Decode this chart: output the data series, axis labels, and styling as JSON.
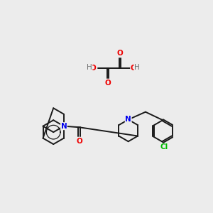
{
  "bg": "#ececec",
  "bc": "#1a1a1a",
  "nc": "#0000ee",
  "oc": "#ee0000",
  "clc": "#00bb00",
  "hc": "#707070",
  "lw": 1.4,
  "fs": 7.5
}
